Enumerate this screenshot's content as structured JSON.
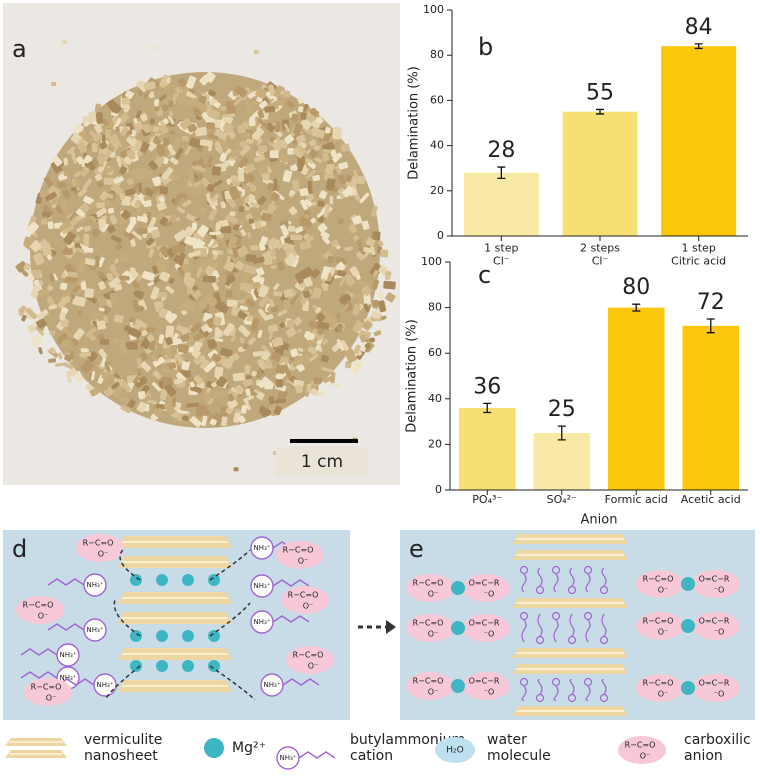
{
  "panel_a": {
    "label": "a",
    "scale_bar": "1 cm"
  },
  "chart_data": [
    {
      "type": "bar",
      "panel_label": "b",
      "ylabel": "Delamination (%)",
      "categories": [
        "1 step\nCl⁻",
        "2 steps\nCl⁻",
        "1 step\nCitric acid"
      ],
      "values": [
        28,
        55,
        84
      ],
      "errors": [
        2.5,
        1,
        1
      ],
      "colors": [
        "#f8eaa6",
        "#f8df73",
        "#fbc70a"
      ],
      "ylim": [
        0,
        100
      ],
      "yticks": [
        0,
        20,
        40,
        60,
        80,
        100
      ],
      "value_labels_shown": true
    },
    {
      "type": "bar",
      "panel_label": "c",
      "ylabel": "Delamination (%)",
      "xlabel": "Anion",
      "categories": [
        "PO₄³⁻",
        "SO₄²⁻",
        "Formic acid",
        "Acetic acid"
      ],
      "values": [
        36,
        25,
        80,
        72
      ],
      "errors": [
        2,
        3,
        1.5,
        3
      ],
      "colors": [
        "#f8df73",
        "#f8eaa6",
        "#fbc70a",
        "#fbc70a"
      ],
      "ylim": [
        0,
        100
      ],
      "yticks": [
        0,
        20,
        40,
        60,
        80,
        100
      ],
      "value_labels_shown": true
    }
  ],
  "schematic": {
    "label_d": "d",
    "label_e": "e",
    "ammonium": "NH₃⁺",
    "carboxylate_top": "R−C=O",
    "carboxylate_bottom": "O⁻",
    "carboxylate_top_mirror": "O=C−R",
    "carboxylate_bottom_mirror": "⁻O"
  },
  "legend": {
    "nanosheet": "vermiculite\nnanosheet",
    "mg": "Mg²⁺",
    "butylammonium": "butylammonium\ncation",
    "ammonium": "NH₃⁺",
    "water_symbol": "H₂O",
    "water": "water\nmolecule",
    "carboxylate_top": "R−C=O",
    "carboxylate_bottom": "O⁻",
    "carboxylate": "carboxilic\nanion"
  }
}
